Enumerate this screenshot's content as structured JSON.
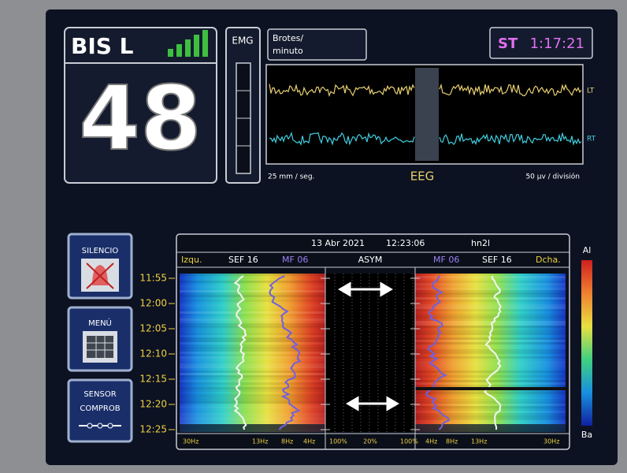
{
  "bis": {
    "label": "BIS L",
    "value": 48
  },
  "emg": {
    "label": "EMG"
  },
  "bursts": {
    "lines": [
      "Brotes/",
      "minuto"
    ]
  },
  "status": {
    "label": "ST",
    "time": "1:17:21"
  },
  "eeg": {
    "channels": [
      "LT",
      "RT"
    ],
    "speed": "25 mm / seg.",
    "title": "EEG",
    "scale": "50 µv / división"
  },
  "buttons": [
    {
      "lines": [
        "SILENCIO"
      ]
    },
    {
      "lines": [
        "MENÚ"
      ]
    },
    {
      "lines": [
        "SENSOR",
        "COMPROB"
      ]
    }
  ],
  "dsa": {
    "date": "13 Abr 2021",
    "time": "12:23:06",
    "id": "hn2l",
    "header_labels": [
      "Izqu.",
      "SEF 16",
      "MF 06",
      "ASYM",
      "MF 06",
      "SEF 16",
      "Dcha."
    ],
    "times": [
      "11:55",
      "12:00",
      "12:05",
      "12:10",
      "12:15",
      "12:20",
      "12:25"
    ],
    "axis_labels": [
      "30Hz",
      "13Hz",
      "8Hz",
      "4Hz",
      "100%",
      "20%",
      "100%",
      "4Hz",
      "8Hz",
      "13Hz",
      "30Hz"
    ],
    "color_scale": {
      "top": "Al",
      "bottom": "Ba"
    }
  }
}
